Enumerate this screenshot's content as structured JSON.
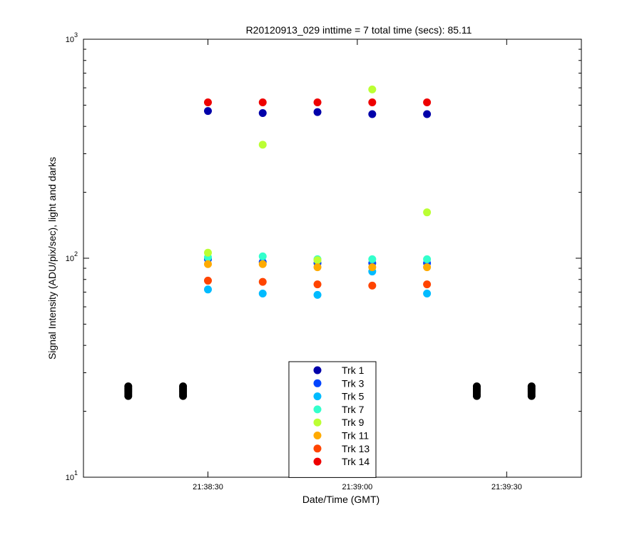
{
  "chart_data": {
    "type": "scatter",
    "title": "R20120913_029 inttime = 7 total time (secs): 85.11",
    "xlabel": "Date/Time (GMT)",
    "ylabel": "Signal Intensity (ADU/pix/sec), light and darks",
    "x_unit": "time",
    "xlim": [
      "21:38:05",
      "21:39:45"
    ],
    "ylim": [
      10,
      1000
    ],
    "y_scale": "log",
    "x_ticks": [
      "21:38:30",
      "21:39:00",
      "21:39:30"
    ],
    "y_ticks": [
      {
        "base": "10",
        "exp": "1",
        "value": 10
      },
      {
        "base": "10",
        "exp": "2",
        "value": 100
      },
      {
        "base": "10",
        "exp": "3",
        "value": 1000
      }
    ],
    "grid": false,
    "legend_position": "bottom-center",
    "series": [
      {
        "name": "Trk 1",
        "color": "#0000aa",
        "points": [
          [
            "21:38:30",
            470
          ],
          [
            "21:38:41",
            460
          ],
          [
            "21:38:52",
            465
          ],
          [
            "21:39:03",
            455
          ],
          [
            "21:39:14",
            455
          ]
        ]
      },
      {
        "name": "Trk 3",
        "color": "#0044ff",
        "points": [
          [
            "21:38:30",
            99
          ],
          [
            "21:38:41",
            96
          ],
          [
            "21:38:52",
            95
          ],
          [
            "21:39:03",
            95
          ],
          [
            "21:39:14",
            95
          ]
        ]
      },
      {
        "name": "Trk 5",
        "color": "#00bbff",
        "points": [
          [
            "21:38:30",
            72
          ],
          [
            "21:38:41",
            69
          ],
          [
            "21:38:52",
            68
          ],
          [
            "21:39:03",
            87
          ],
          [
            "21:39:14",
            69
          ]
        ]
      },
      {
        "name": "Trk 7",
        "color": "#33ffcc",
        "points": [
          [
            "21:38:30",
            101
          ],
          [
            "21:38:41",
            102
          ],
          [
            "21:38:52",
            99
          ],
          [
            "21:39:03",
            99
          ],
          [
            "21:39:14",
            99
          ]
        ]
      },
      {
        "name": "Trk 9",
        "color": "#bbff33",
        "points": [
          [
            "21:38:30",
            106
          ],
          [
            "21:38:41",
            330
          ],
          [
            "21:38:52",
            98
          ],
          [
            "21:39:03",
            590
          ],
          [
            "21:39:14",
            162
          ]
        ]
      },
      {
        "name": "Trk 11",
        "color": "#ffaa00",
        "points": [
          [
            "21:38:30",
            94
          ],
          [
            "21:38:41",
            94
          ],
          [
            "21:38:52",
            91
          ],
          [
            "21:39:03",
            91
          ],
          [
            "21:39:14",
            91
          ]
        ]
      },
      {
        "name": "Trk 13",
        "color": "#ff4400",
        "points": [
          [
            "21:38:30",
            79
          ],
          [
            "21:38:41",
            78
          ],
          [
            "21:38:52",
            76
          ],
          [
            "21:39:03",
            75
          ],
          [
            "21:39:14",
            76
          ]
        ]
      },
      {
        "name": "Trk 14",
        "color": "#ee0000",
        "points": [
          [
            "21:38:30",
            515
          ],
          [
            "21:38:41",
            515
          ],
          [
            "21:38:52",
            515
          ],
          [
            "21:39:03",
            515
          ],
          [
            "21:39:14",
            515
          ]
        ]
      }
    ],
    "dark_series": {
      "color": "#000000",
      "points": [
        [
          "21:38:14",
          23.5
        ],
        [
          "21:38:14",
          24
        ],
        [
          "21:38:14",
          24.5
        ],
        [
          "21:38:14",
          25
        ],
        [
          "21:38:14",
          25.5
        ],
        [
          "21:38:14",
          26
        ],
        [
          "21:38:25",
          23.5
        ],
        [
          "21:38:25",
          24
        ],
        [
          "21:38:25",
          24.5
        ],
        [
          "21:38:25",
          25
        ],
        [
          "21:38:25",
          25.5
        ],
        [
          "21:38:25",
          26
        ],
        [
          "21:39:24",
          23.5
        ],
        [
          "21:39:24",
          24
        ],
        [
          "21:39:24",
          24.5
        ],
        [
          "21:39:24",
          25
        ],
        [
          "21:39:24",
          25.5
        ],
        [
          "21:39:24",
          26
        ],
        [
          "21:39:35",
          23.5
        ],
        [
          "21:39:35",
          24
        ],
        [
          "21:39:35",
          24.5
        ],
        [
          "21:39:35",
          25
        ],
        [
          "21:39:35",
          25.5
        ],
        [
          "21:39:35",
          26
        ]
      ]
    }
  }
}
